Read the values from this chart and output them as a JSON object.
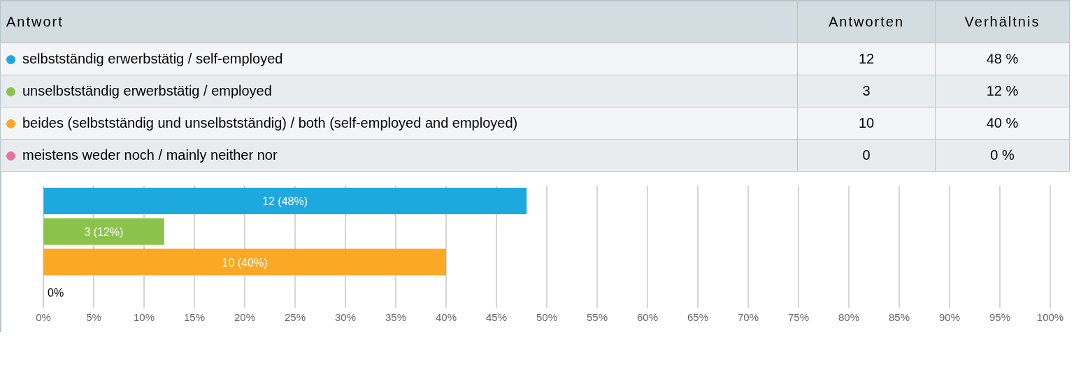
{
  "chart_data": {
    "type": "bar",
    "orientation": "horizontal",
    "stacked": true,
    "categories": [
      null,
      null,
      null,
      null
    ],
    "series": [
      {
        "name": "selbstständig erwerbstätig / self-employed",
        "color": "#1ea8e0",
        "values": [
          48,
          null,
          null,
          null
        ],
        "value_labels": [
          "12 (48%)",
          null,
          null,
          null
        ]
      },
      {
        "name": "unselbstständig erwerbstätig / employed",
        "color": "#8bc34a",
        "values": [
          null,
          12,
          null,
          null
        ],
        "value_labels": [
          null,
          "3 (12%)",
          null,
          null
        ]
      },
      {
        "name": "beides (selbstständig und unselbstständig) / both (self-employed and employed)",
        "color": "#fba924",
        "values": [
          null,
          null,
          40,
          null
        ],
        "value_labels": [
          null,
          null,
          "10 (40%)",
          null
        ]
      },
      {
        "name": "meistens weder noch / mainly neither nor",
        "color": "#e8709f",
        "values": [
          null,
          null,
          null,
          0
        ],
        "value_labels": [
          null,
          null,
          null,
          "0%"
        ]
      }
    ],
    "annotations": [
      "Antwort",
      "Antworten",
      "Verhältnis",
      "12",
      "48 %",
      "3",
      "12 %",
      "10",
      "40 %",
      "0",
      "0 %"
    ],
    "xlim": [
      0,
      100
    ],
    "xticks": [
      {
        "value": 0,
        "label": "0%"
      },
      {
        "value": 5,
        "label": "5%"
      },
      {
        "value": 10,
        "label": "10%"
      },
      {
        "value": 15,
        "label": "15%"
      },
      {
        "value": 20,
        "label": "20%"
      },
      {
        "value": 25,
        "label": "25%"
      },
      {
        "value": 30,
        "label": "30%"
      },
      {
        "value": 35,
        "label": "35%"
      },
      {
        "value": 40,
        "label": "40%"
      },
      {
        "value": 45,
        "label": "45%"
      },
      {
        "value": 50,
        "label": "50%"
      },
      {
        "value": 55,
        "label": "55%"
      },
      {
        "value": 60,
        "label": "60%"
      },
      {
        "value": 65,
        "label": "65%"
      },
      {
        "value": 70,
        "label": "70%"
      },
      {
        "value": 75,
        "label": "75%"
      },
      {
        "value": 80,
        "label": "80%"
      },
      {
        "value": 85,
        "label": "85%"
      },
      {
        "value": 90,
        "label": "90%"
      },
      {
        "value": 95,
        "label": "95%"
      },
      {
        "value": 100,
        "label": "100%"
      }
    ],
    "grid": "x",
    "legend": "top",
    "tick_labels": "x"
  }
}
